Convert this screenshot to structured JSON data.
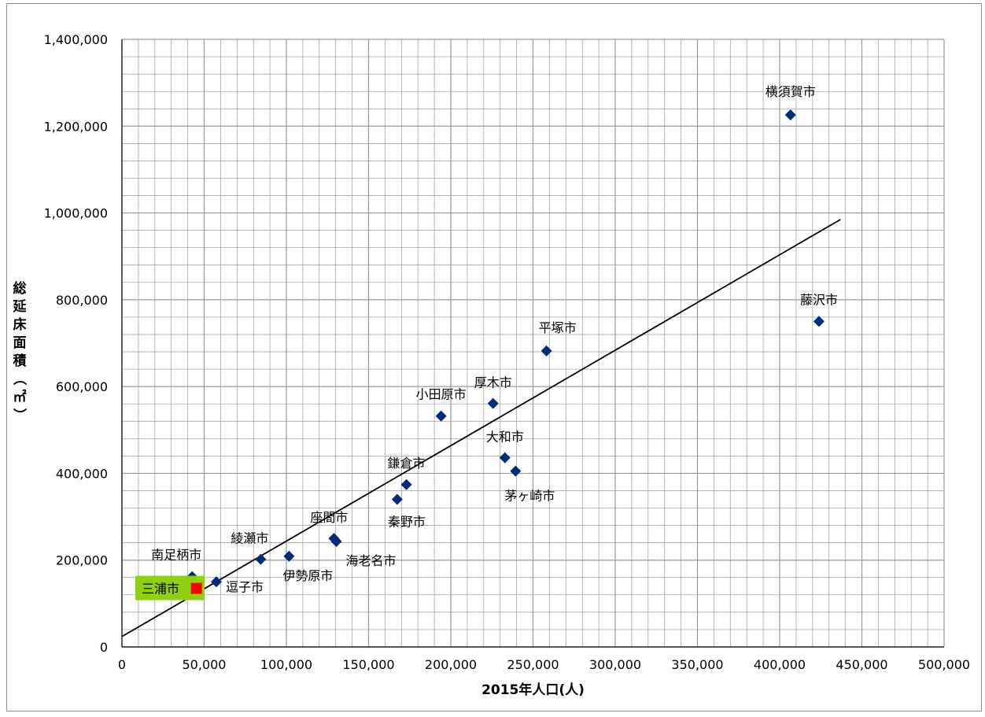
{
  "chart_data": {
    "type": "scatter",
    "title": "",
    "xlabel": "2015年人口(人)",
    "ylabel": "総延床面積（㎡）",
    "xlim": [
      0,
      500000
    ],
    "ylim": [
      0,
      1400000
    ],
    "grid": true,
    "x_ticks": [
      "0",
      "50,000",
      "100,000",
      "150,000",
      "200,000",
      "250,000",
      "300,000",
      "350,000",
      "400,000",
      "450,000",
      "500,000"
    ],
    "y_ticks": [
      "0",
      "200,000",
      "400,000",
      "600,000",
      "800,000",
      "1,000,000",
      "1,200,000",
      "1,400,000"
    ],
    "points": [
      {
        "name": "横須賀市",
        "x": 406600,
        "y": 1226000
      },
      {
        "name": "藤沢市",
        "x": 423900,
        "y": 750000
      },
      {
        "name": "平塚市",
        "x": 258200,
        "y": 682000
      },
      {
        "name": "厚木市",
        "x": 225700,
        "y": 561000
      },
      {
        "name": "小田原市",
        "x": 194100,
        "y": 532000
      },
      {
        "name": "大和市",
        "x": 232900,
        "y": 436000
      },
      {
        "name": "茅ヶ崎市",
        "x": 239400,
        "y": 405000
      },
      {
        "name": "鎌倉市",
        "x": 173000,
        "y": 374000
      },
      {
        "name": "秦野市",
        "x": 167400,
        "y": 340000
      },
      {
        "name": "座間市",
        "x": 128900,
        "y": 250000
      },
      {
        "name": "海老名市",
        "x": 130400,
        "y": 243000
      },
      {
        "name": "伊勢原市",
        "x": 101600,
        "y": 209000
      },
      {
        "name": "綾瀬市",
        "x": 84400,
        "y": 202000
      },
      {
        "name": "逗子市",
        "x": 57400,
        "y": 150000
      },
      {
        "name": "南足柄市",
        "x": 42700,
        "y": 162000
      }
    ],
    "highlight": {
      "name": "三浦市",
      "x": 45300,
      "y": 135000
    },
    "trendline": {
      "x": [
        0,
        437000
      ],
      "y": [
        24000,
        985000
      ]
    },
    "colors": {
      "marker": "#002a7a",
      "highlight": "#ff0000",
      "highlight_label_bg": "#8fd10f",
      "grid": "#9a9a9a",
      "trend": "#000000"
    }
  }
}
